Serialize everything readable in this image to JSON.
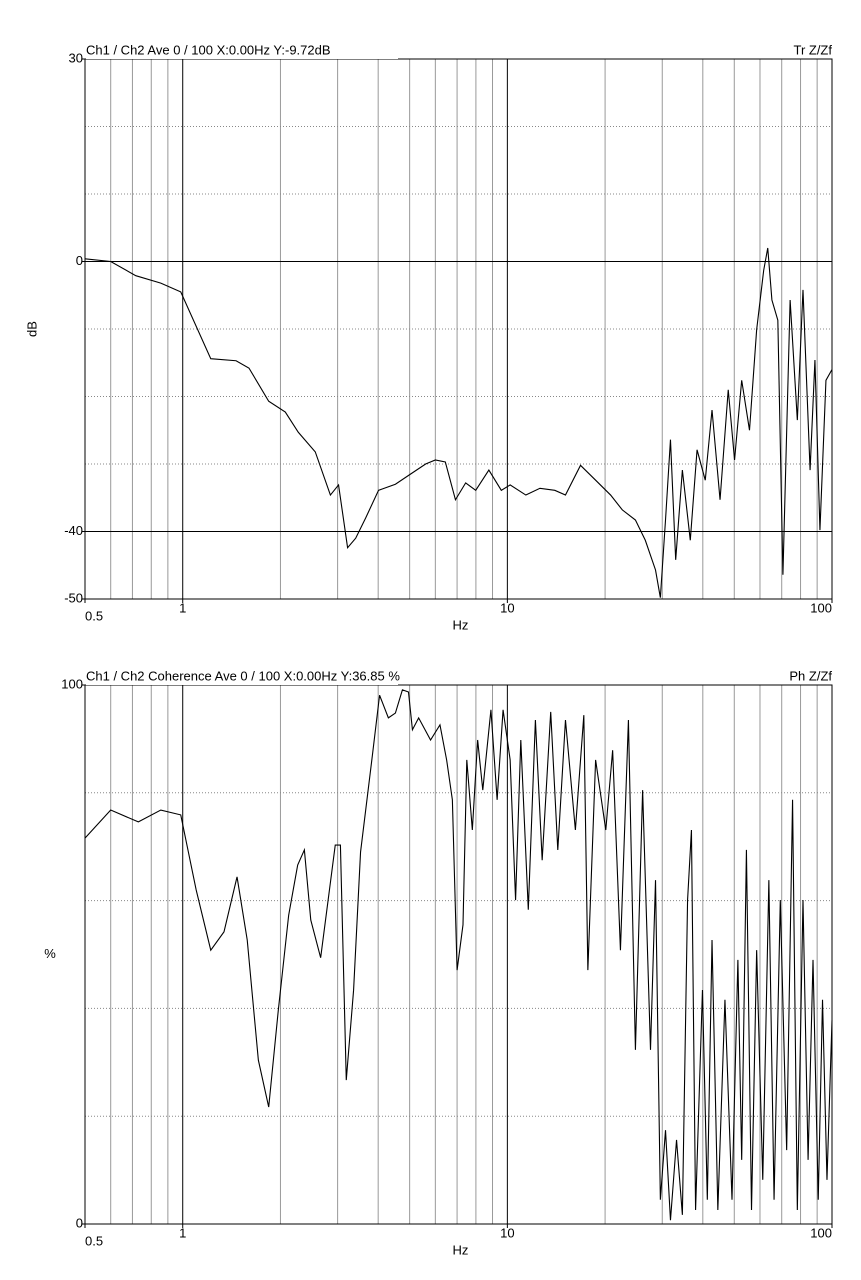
{
  "chart_data": [
    {
      "type": "line",
      "title": "Ch1 / Ch2  Ave 0 / 100  X:0.00Hz  Y:-9.72dB",
      "subtitle": "Tr Z/Zf",
      "xlabel": "Hz",
      "ylabel": "dB",
      "log_x": true,
      "xlim": [
        0.5,
        100
      ],
      "xticks": [
        0.5,
        1,
        10,
        100
      ],
      "xgrid_minor": [
        0.6,
        0.7,
        0.8,
        0.9,
        2,
        3,
        4,
        5,
        6,
        7,
        8,
        9,
        20,
        30,
        40,
        50,
        60,
        70,
        80,
        90
      ],
      "ylim": [
        -50,
        30
      ],
      "yticks": [
        -50,
        -40,
        0,
        30
      ],
      "ygrid_minor": [
        -30,
        -20,
        -10,
        10,
        20
      ],
      "x": [
        0.5,
        0.6,
        0.717,
        0.856,
        0.986,
        1.22,
        1.46,
        1.6,
        1.84,
        2.07,
        2.27,
        2.56,
        2.85,
        3.02,
        3.22,
        3.41,
        3.66,
        4.01,
        4.52,
        5.03,
        5.6,
        6.0,
        6.44,
        6.92,
        7.44,
        7.99,
        8.77,
        9.58,
        10.2,
        11.4,
        12.6,
        14.0,
        15.1,
        16.8,
        18.7,
        20.8,
        22.6,
        24.8,
        26.6,
        28.6,
        29.6,
        30.7,
        31.8,
        33.0,
        34.6,
        36.6,
        38.4,
        40.7,
        42.7,
        45.2,
        47.9,
        50.1,
        52.7,
        55.7,
        58.6,
        61.6,
        63.4,
        65.3,
        68.1,
        70.6,
        74.3,
        78.2,
        81.4,
        85.6,
        88.6,
        91.8,
        95.8,
        100
      ],
      "series": [
        {
          "name": "Tr Z/Zf",
          "color": "#000000",
          "values": [
            0.4,
            0,
            -2.1,
            -3.2,
            -4.5,
            -14.4,
            -14.7,
            -15.8,
            -20.7,
            -22.3,
            -25.3,
            -28.2,
            -34.6,
            -33.1,
            -42.4,
            -41,
            -38,
            -33.9,
            -33,
            -31.5,
            -30,
            -29.4,
            -29.7,
            -35.3,
            -32.8,
            -33.9,
            -30.9,
            -33.9,
            -33.1,
            -34.6,
            -33.6,
            -33.9,
            -34.6,
            -30.2,
            -32.4,
            -34.6,
            -36.8,
            -38.3,
            -41.3,
            -45.7,
            -49.8,
            -38.3,
            -26.4,
            -44.2,
            -30.9,
            -41.3,
            -27.9,
            -32.4,
            -22,
            -35.3,
            -19,
            -29.4,
            -17.6,
            -25,
            -10.1,
            -1.3,
            2,
            -5.7,
            -8.7,
            -46.4,
            -5.7,
            -23.5,
            -4.2,
            -30.9,
            -14.6,
            -39.8,
            -17.6,
            -16
          ]
        }
      ]
    },
    {
      "type": "line",
      "title": "Ch1 / Ch2  Coherence Ave 0 / 100  X:0.00Hz  Y:36.85 %",
      "subtitle": "Ph Z/Zf",
      "xlabel": "Hz",
      "ylabel": "%",
      "log_x": true,
      "xlim": [
        0.5,
        100
      ],
      "xticks": [
        0.5,
        1,
        10,
        100
      ],
      "xgrid_minor": [
        0.6,
        0.7,
        0.8,
        0.9,
        2,
        3,
        4,
        5,
        6,
        7,
        8,
        9,
        20,
        30,
        40,
        50,
        60,
        70,
        80,
        90
      ],
      "ylim": [
        0,
        100
      ],
      "yticks": [
        0,
        100
      ],
      "ygrid_minor": [
        20,
        40,
        60,
        80
      ],
      "x": [
        0.5,
        0.6,
        0.73,
        0.856,
        0.986,
        1.1,
        1.22,
        1.34,
        1.47,
        1.58,
        1.71,
        1.84,
        1.97,
        2.12,
        2.26,
        2.37,
        2.48,
        2.66,
        2.95,
        3.06,
        3.19,
        3.36,
        3.53,
        3.84,
        4.04,
        4.3,
        4.52,
        4.75,
        4.96,
        5.1,
        5.33,
        5.8,
        6.2,
        6.5,
        6.77,
        7.0,
        7.3,
        7.5,
        7.8,
        8.1,
        8.4,
        8.9,
        9.3,
        9.7,
        10.2,
        10.6,
        11.0,
        11.6,
        12.2,
        12.8,
        13.6,
        14.3,
        15.1,
        16.2,
        17.2,
        17.7,
        18.7,
        20.1,
        21.1,
        22.3,
        23.6,
        24.8,
        26.1,
        27.6,
        28.6,
        29.6,
        30.7,
        31.8,
        33.2,
        34.6,
        35.9,
        36.9,
        38,
        39.9,
        41.3,
        42.7,
        44.5,
        46.8,
        49.2,
        51.3,
        52.7,
        54.5,
        56.5,
        58.6,
        61.2,
        63.9,
        66.3,
        69.3,
        72.5,
        75.6,
        78.2,
        81.4,
        84.4,
        87.4,
        90.7,
        93.5,
        96.5,
        100
      ],
      "series": [
        {
          "name": "Ph Z/Zf",
          "color": "#000000",
          "values": [
            71.6,
            76.8,
            74.6,
            76.8,
            75.9,
            62,
            50.8,
            54.2,
            64.4,
            52.7,
            30.4,
            21.7,
            39.7,
            57.3,
            66.6,
            69.4,
            56.4,
            49.4,
            70.3,
            70.3,
            26.7,
            43.4,
            69,
            87,
            98.1,
            93.9,
            94.8,
            99.1,
            98.7,
            91.7,
            93.9,
            89.8,
            92.6,
            86.1,
            78.7,
            47.1,
            55.5,
            86.1,
            73.1,
            89.8,
            80.5,
            95.4,
            78.7,
            95.4,
            86.1,
            60.1,
            89.8,
            58.3,
            93.5,
            67.5,
            95,
            69.4,
            93.5,
            73.1,
            94.4,
            47.1,
            86.1,
            73.1,
            87.9,
            50.8,
            93.5,
            32.3,
            80.5,
            32.3,
            63.8,
            4.5,
            17.4,
            0.7,
            15.6,
            1.7,
            60.1,
            73.1,
            2.6,
            43.4,
            4.5,
            52.7,
            2.6,
            41.6,
            4.5,
            49,
            11.9,
            69.4,
            2.6,
            50.8,
            8.2,
            63.8,
            4.5,
            60.1,
            13.7,
            78.7,
            2.6,
            60.1,
            11.9,
            49,
            4.5,
            41.6,
            8.2,
            37.8
          ]
        }
      ]
    }
  ]
}
